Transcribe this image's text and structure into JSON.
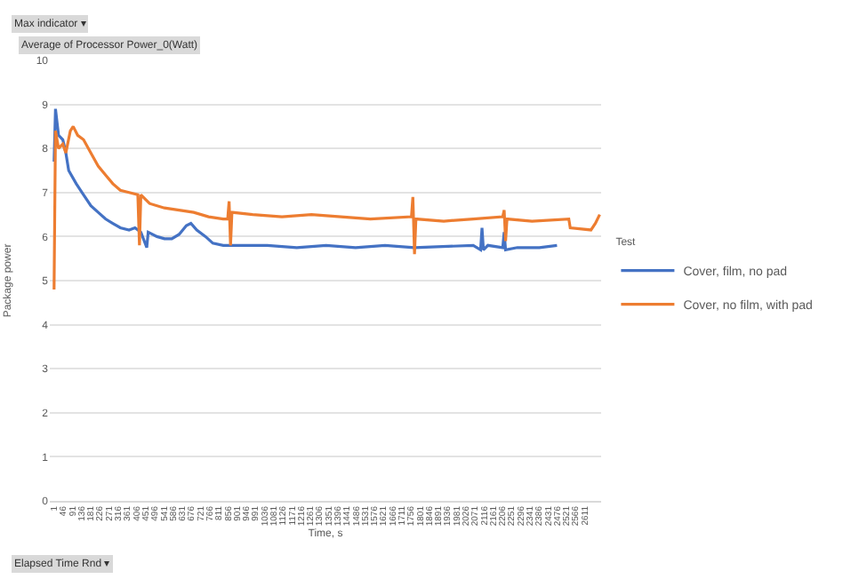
{
  "chart_data": {
    "type": "line",
    "xlabel": "Time, s",
    "ylabel": "Package power",
    "legend_title": "Test",
    "annotations": [
      "Max indicator ▾",
      "Average of Processor Power_0(Watt)",
      "Elapsed Time Rnd ▾"
    ],
    "series": [
      {
        "name": "Cover, film, no pad",
        "color": "#4472c4",
        "x": [
          1,
          8,
          23,
          44,
          59,
          73,
          110,
          146,
          182,
          218,
          254,
          290,
          327,
          370,
          399,
          428,
          457,
          464,
          507,
          544,
          580,
          616,
          652,
          674,
          703,
          746,
          782,
          833,
          905,
          1050,
          1195,
          1339,
          1484,
          1629,
          1774,
          2063,
          2099,
          2106,
          2113,
          2135,
          2208,
          2215,
          2222,
          2280,
          2388,
          2475
        ],
        "values": [
          7.7,
          8.9,
          8.3,
          8.2,
          7.9,
          7.5,
          7.2,
          6.95,
          6.7,
          6.55,
          6.4,
          6.3,
          6.2,
          6.15,
          6.2,
          6.1,
          5.75,
          6.1,
          6.0,
          5.95,
          5.95,
          6.05,
          6.25,
          6.3,
          6.15,
          6.0,
          5.85,
          5.8,
          5.8,
          5.8,
          5.75,
          5.8,
          5.75,
          5.8,
          5.75,
          5.8,
          5.7,
          6.2,
          5.7,
          5.8,
          5.75,
          6.1,
          5.7,
          5.75,
          5.75,
          5.8
        ]
      },
      {
        "name": "Cover, no film, with pad",
        "color": "#ed7d31",
        "x": [
          1,
          8,
          23,
          44,
          59,
          81,
          95,
          117,
          146,
          182,
          218,
          254,
          290,
          327,
          370,
          413,
          421,
          428,
          471,
          544,
          616,
          688,
          761,
          833,
          855,
          862,
          869,
          876,
          978,
          1122,
          1267,
          1412,
          1557,
          1759,
          1766,
          1774,
          1781,
          1918,
          2063,
          2208,
          2215,
          2222,
          2229,
          2352,
          2533,
          2540,
          2642,
          2664,
          2685
        ],
        "values": [
          4.8,
          8.4,
          8.0,
          8.1,
          7.9,
          8.4,
          8.5,
          8.3,
          8.2,
          7.9,
          7.6,
          7.4,
          7.2,
          7.05,
          7.0,
          6.95,
          5.8,
          6.95,
          6.75,
          6.65,
          6.6,
          6.55,
          6.45,
          6.4,
          6.4,
          6.8,
          5.8,
          6.55,
          6.5,
          6.45,
          6.5,
          6.45,
          6.4,
          6.45,
          6.9,
          5.6,
          6.4,
          6.35,
          6.4,
          6.45,
          6.6,
          5.9,
          6.4,
          6.35,
          6.4,
          6.2,
          6.15,
          6.3,
          6.5
        ]
      }
    ],
    "xlim": [
      -20,
      2692
    ],
    "xticks": [
      1,
      46,
      91,
      136,
      181,
      226,
      271,
      316,
      361,
      406,
      451,
      496,
      541,
      586,
      631,
      676,
      721,
      766,
      811,
      856,
      901,
      946,
      991,
      1036,
      1081,
      1126,
      1171,
      1216,
      1261,
      1306,
      1351,
      1396,
      1441,
      1486,
      1531,
      1576,
      1621,
      1666,
      1711,
      1756,
      1801,
      1846,
      1891,
      1936,
      1981,
      2026,
      2071,
      2116,
      2161,
      2206,
      2251,
      2296,
      2341,
      2386,
      2431,
      2476,
      2521,
      2566,
      2611
    ],
    "ylim": [
      0,
      10
    ],
    "yticks": [
      0,
      1,
      2,
      3,
      4,
      5,
      6,
      7,
      8,
      9,
      10
    ],
    "grid": "y",
    "legend": "right",
    "marker": "none",
    "line_style": "solid"
  }
}
